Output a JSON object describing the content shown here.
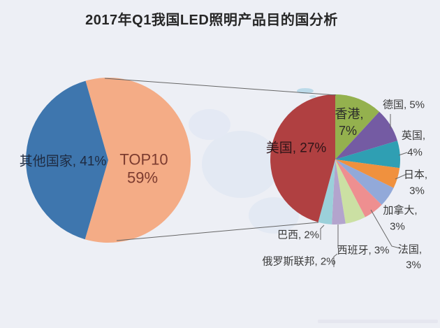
{
  "chart_data": {
    "type": "pie",
    "subtype": "pie-of-pie",
    "title": "2017年Q1我国LED照明产品目的国分析",
    "unit": "%",
    "legend": "none",
    "primary": {
      "slices": [
        {
          "id": "top10",
          "name": "TOP10",
          "value": 59,
          "color": "#f4ac86"
        },
        {
          "id": "other-countries",
          "name": "其他国家",
          "value": 41,
          "color": "#3e76ae"
        }
      ]
    },
    "secondary": {
      "total_share_pct": 59,
      "slices": [
        {
          "id": "hong-kong",
          "name": "香港",
          "value": 7,
          "color": "#94b14e"
        },
        {
          "id": "germany",
          "name": "德国",
          "value": 5,
          "color": "#745ba3"
        },
        {
          "id": "uk",
          "name": "英国",
          "value": 4,
          "color": "#2f9fb3"
        },
        {
          "id": "japan",
          "name": "日本",
          "value": 3,
          "color": "#f0913e"
        },
        {
          "id": "canada",
          "name": "加拿大",
          "value": 3,
          "color": "#92a9d9"
        },
        {
          "id": "france",
          "name": "法国",
          "value": 3,
          "color": "#ee8f90"
        },
        {
          "id": "spain",
          "name": "西班牙",
          "value": 3,
          "color": "#cbe0a3"
        },
        {
          "id": "russia",
          "name": "俄罗斯联邦",
          "value": 2,
          "color": "#b3a4cd"
        },
        {
          "id": "brazil",
          "name": "巴西",
          "value": 2,
          "color": "#9bd0da"
        },
        {
          "id": "usa",
          "name": "美国",
          "value": 27,
          "color": "#b04041"
        }
      ]
    }
  }
}
